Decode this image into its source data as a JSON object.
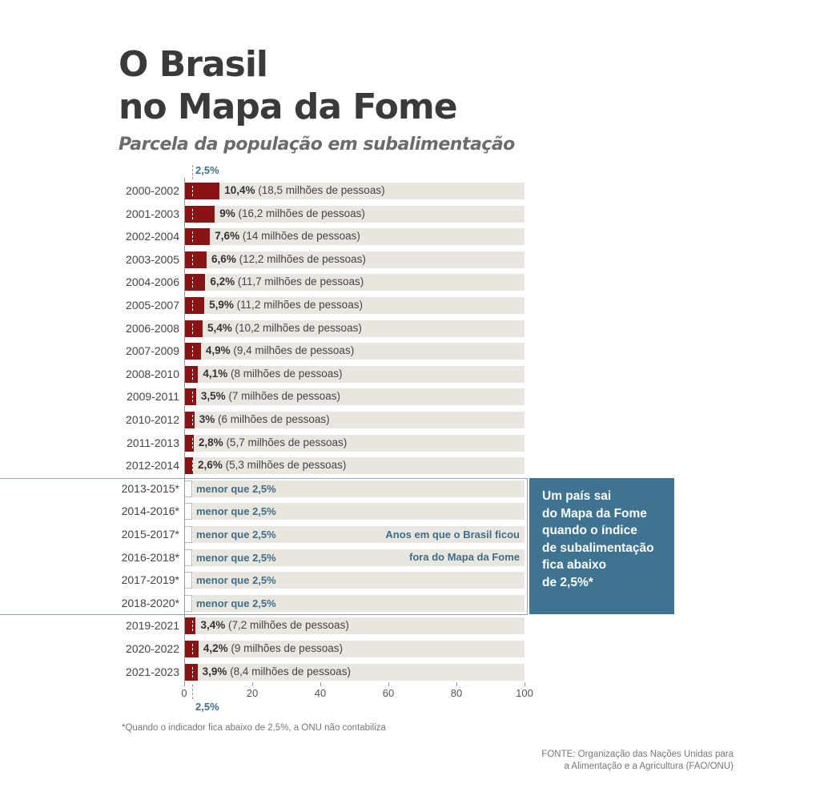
{
  "title_line1": "O Brasil",
  "title_line2": "no Mapa da Fome",
  "subtitle": "Parcela da população em subalimentação",
  "threshold_label": "2,5%",
  "box_text": [
    "Um país sai",
    "do Mapa da Fome",
    "quando o índice",
    "de subalimentação",
    "fica abaixo",
    "de 2,5%*"
  ],
  "annotation": [
    "Anos em que o Brasil ficou",
    "fora do Mapa da Fome"
  ],
  "footnote": "*Quando o indicador fica abaixo de 2,5%, a ONU não contabiliza",
  "source_line1": "FONTE: Organização das Nações Unidas para",
  "source_line2": "a Alimentação e a Agricultura (FAO/ONU)",
  "colors": {
    "bar": "#8a1414",
    "background_bar": "#e9e6e0",
    "accent": "#3e7391"
  },
  "chart_data": {
    "type": "bar",
    "orientation": "horizontal",
    "title": "O Brasil no Mapa da Fome",
    "subtitle": "Parcela da população em subalimentação",
    "xlim": [
      0,
      100
    ],
    "xticks": [
      "0",
      "20",
      "40",
      "60",
      "80",
      "100"
    ],
    "threshold": 2.5,
    "categories": [
      "2000-2002",
      "2001-2003",
      "2002-2004",
      "2003-2005",
      "2004-2006",
      "2005-2007",
      "2006-2008",
      "2007-2009",
      "2008-2010",
      "2009-2011",
      "2010-2012",
      "2011-2013",
      "2012-2014",
      "2013-2015*",
      "2014-2016*",
      "2015-2017*",
      "2016-2018*",
      "2017-2019*",
      "2018-2020*",
      "2019-2021",
      "2020-2022",
      "2021-2023"
    ],
    "values": [
      10.4,
      9,
      7.6,
      6.6,
      6.2,
      5.9,
      5.4,
      4.9,
      4.1,
      3.5,
      3,
      2.8,
      2.6,
      null,
      null,
      null,
      null,
      null,
      null,
      3.4,
      4.2,
      3.9
    ],
    "value_labels": [
      "10,4%",
      "9%",
      "7,6%",
      "6,6%",
      "6,2%",
      "5,9%",
      "5,4%",
      "4,9%",
      "4,1%",
      "3,5%",
      "3%",
      "2,8%",
      "2,6%",
      "menor que 2,5%",
      "menor que 2,5%",
      "menor que 2,5%",
      "menor que 2,5%",
      "menor que 2,5%",
      "menor que 2,5%",
      "3,4%",
      "4,2%",
      "3,9%"
    ],
    "people_labels": [
      "(18,5 milhões de pessoas)",
      "(16,2 milhões de pessoas)",
      "(14 milhões de pessoas)",
      "(12,2 milhões de pessoas)",
      "(11,7 milhões de pessoas)",
      "(11,2 milhões de pessoas)",
      "(10,2 milhões de pessoas)",
      "(9,4 milhões de pessoas)",
      "(8 milhões de pessoas)",
      "(7 milhões de pessoas)",
      "(6 milhões de pessoas)",
      "(5,7 milhões de pessoas)",
      "(5,3 milhões de pessoas)",
      "",
      "",
      "",
      "",
      "",
      "",
      "(7,2 milhões de pessoas)",
      "(9 milhões de pessoas)",
      "(8,4 milhões de pessoas)"
    ]
  }
}
